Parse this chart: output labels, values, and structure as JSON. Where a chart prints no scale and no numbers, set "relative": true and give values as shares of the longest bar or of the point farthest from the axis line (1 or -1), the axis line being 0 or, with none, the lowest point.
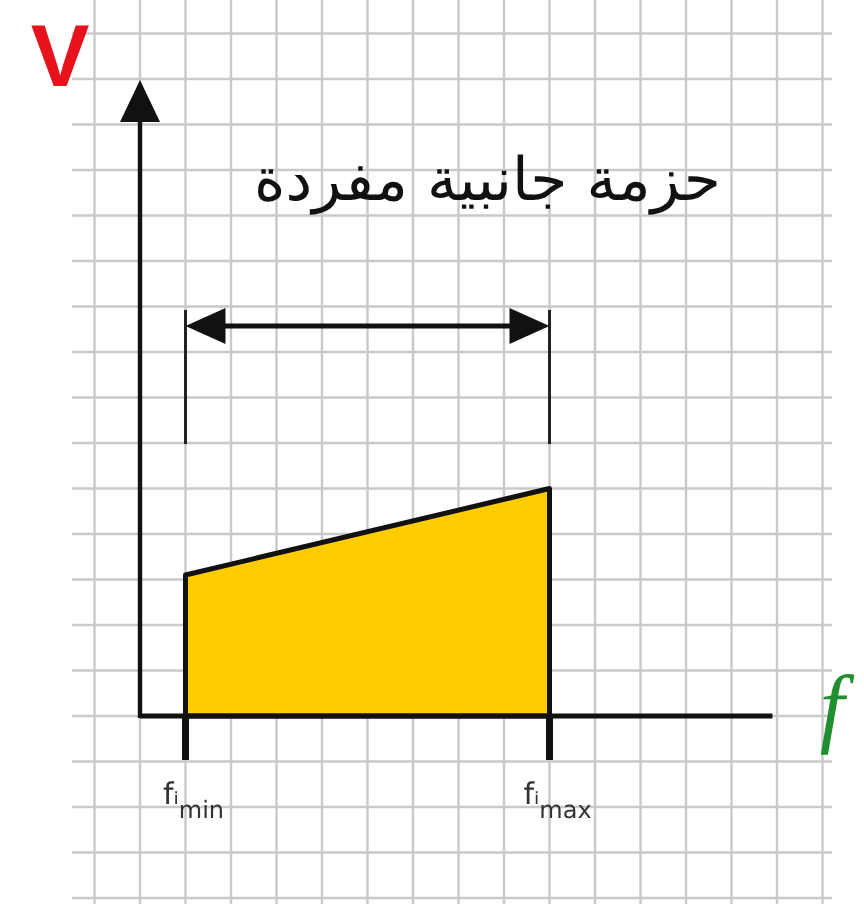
{
  "chart_data": {
    "type": "area",
    "categories": [
      "fᵢ$_{min}$",
      "fᵢ$_{max}$"
    ],
    "values": [
      0.62,
      1
    ],
    "color": "#ffcc00",
    "relative": true,
    "xlabel": "f",
    "ylabel": "V",
    "annotations": [
      "حزمة جانبية مفردة"
    ],
    "grid": true
  }
}
